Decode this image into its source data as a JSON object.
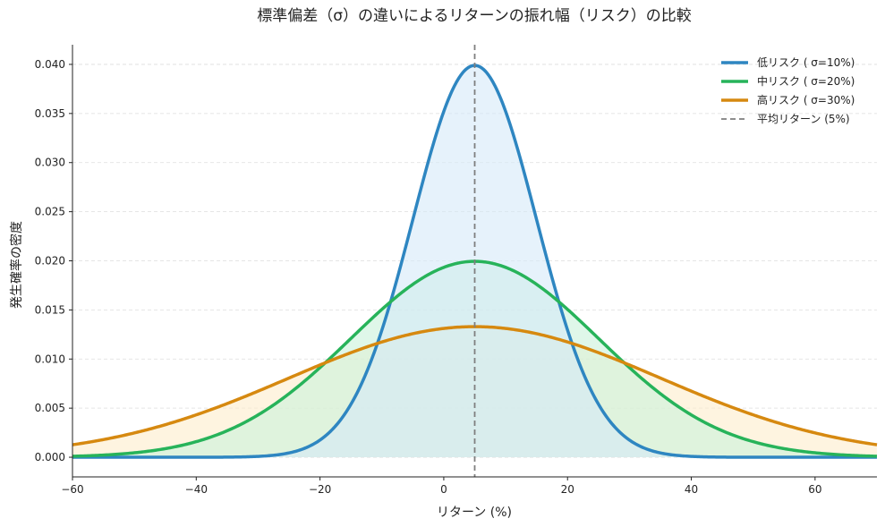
{
  "chart_data": {
    "type": "line",
    "title": "標準偏差（σ）の違いによるリターンの振れ幅（リスク）の比較",
    "xlabel": "リターン (%)",
    "ylabel": "発生確率の密度",
    "xlim": [
      -60,
      70
    ],
    "ylim": [
      -0.002,
      0.042
    ],
    "xticks": [
      -60,
      -40,
      -20,
      0,
      20,
      40,
      60
    ],
    "xtick_labels": [
      "−60",
      "−40",
      "−20",
      "0",
      "20",
      "40",
      "60"
    ],
    "yticks": [
      0.0,
      0.005,
      0.01,
      0.015,
      0.02,
      0.025,
      0.03,
      0.035,
      0.04
    ],
    "ytick_labels": [
      "0.000",
      "0.005",
      "0.010",
      "0.015",
      "0.020",
      "0.025",
      "0.030",
      "0.035",
      "0.040"
    ],
    "grid": "horizontal dashed",
    "legend_position": "top-right",
    "series": [
      {
        "name": "低リスク ( σ=10%)",
        "mean": 5,
        "sd": 10,
        "peak": 0.0399,
        "color": "#2e86c1",
        "fill": "#d6e9f8"
      },
      {
        "name": "中リスク ( σ=20%)",
        "mean": 5,
        "sd": 20,
        "peak": 0.0199,
        "color": "#27b35a",
        "fill": "#c9f2da"
      },
      {
        "name": "高リスク ( σ=30%)",
        "mean": 5,
        "sd": 30,
        "peak": 0.0133,
        "color": "#d68910",
        "fill": "#fdeccc"
      }
    ],
    "reference_line": {
      "name": "平均リターン (5%)",
      "x": 5,
      "color": "#7f7f7f",
      "style": "dashed"
    }
  }
}
